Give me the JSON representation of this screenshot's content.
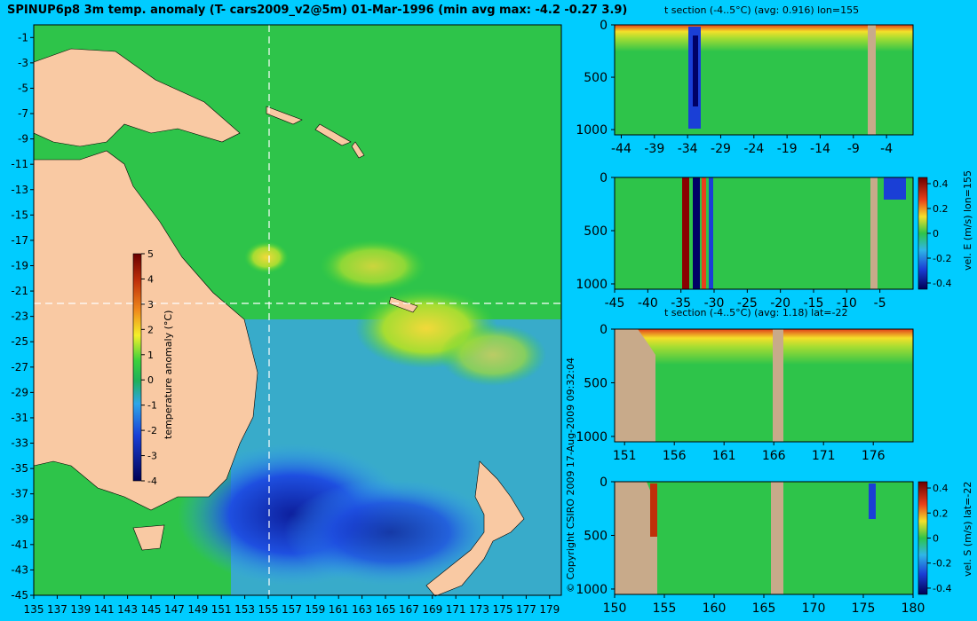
{
  "map": {
    "title": "SPINUP6p8 3m temp. anomaly (T- cars2009_v2@5m) 01-Mar-1996 (min avg max: -4.2 -0.27 3.9)",
    "colorbar_label": "temperature anomaly (°C)",
    "colorbar_ticks": [
      "5",
      "4",
      "3",
      "2",
      "1",
      "0",
      "-1",
      "-2",
      "-3",
      "-4"
    ],
    "lat_ticks": [
      "-1",
      "-3",
      "-5",
      "-7",
      "-9",
      "-11",
      "-13",
      "-15",
      "-17",
      "-19",
      "-21",
      "-23",
      "-25",
      "-27",
      "-29",
      "-31",
      "-33",
      "-35",
      "-37",
      "-39",
      "-41",
      "-43",
      "-45"
    ],
    "lon_ticks": [
      "135",
      "137",
      "139",
      "141",
      "143",
      "145",
      "147",
      "149",
      "151",
      "153",
      "155",
      "157",
      "159",
      "161",
      "163",
      "165",
      "167",
      "169",
      "171",
      "173",
      "175",
      "177",
      "179"
    ],
    "copyright": "© Copyright CSIRO 2009   17-Aug-2009 09:32:04"
  },
  "panels": {
    "p1": {
      "title": "t section (-4..5°C) (avg: 0.916) lon=155",
      "x_ticks": [
        "-44",
        "-39",
        "-34",
        "-29",
        "-24",
        "-19",
        "-14",
        "-9",
        "-4"
      ],
      "y_ticks": [
        "0",
        "500",
        "1000"
      ]
    },
    "p2": {
      "x_ticks": [
        "-45",
        "-40",
        "-35",
        "-30",
        "-25",
        "-20",
        "-15",
        "-10",
        "-5"
      ],
      "y_ticks": [
        "0",
        "500",
        "1000"
      ],
      "cb_label": "vel. E (m/s) lon=155",
      "cb_ticks": [
        "0.4",
        "0.2",
        "0",
        "-0.2",
        "-0.4"
      ]
    },
    "p3": {
      "title": "t section (-4..5°C) (avg: 1.18) lat=-22",
      "x_ticks": [
        "151",
        "156",
        "161",
        "166",
        "171",
        "176"
      ],
      "y_ticks": [
        "0",
        "500",
        "1000"
      ]
    },
    "p4": {
      "x_ticks": [
        "150",
        "155",
        "160",
        "165",
        "170",
        "175",
        "180"
      ],
      "y_ticks": [
        "0",
        "500",
        "1000"
      ],
      "cb_label": "vel. S (m/s) lat=-22",
      "cb_ticks": [
        "0.4",
        "0.2",
        "0",
        "-0.2",
        "-0.4"
      ]
    }
  },
  "chart_data": [
    {
      "type": "heatmap",
      "title": "SPINUP6p8 3m temp. anomaly (T- cars2009_v2@5m) 01-Mar-1996 (min avg max: -4.2 -0.27 3.9)",
      "x_range": [
        135,
        180
      ],
      "y_range": [
        -45,
        0
      ],
      "crosshair": {
        "lon": 155,
        "lat": -22
      },
      "color_range": [
        -4,
        5
      ],
      "stats": {
        "min": -4.2,
        "avg": -0.27,
        "max": 3.9
      }
    },
    {
      "type": "heatmap",
      "title": "t section (-4..5°C) (avg: 0.916) lon=155",
      "x_range": [
        -45,
        0
      ],
      "y_range": [
        0,
        1050
      ],
      "avg": 0.916
    },
    {
      "type": "heatmap",
      "title": "vel. E (m/s) lon=155",
      "x_range": [
        -45,
        0
      ],
      "y_range": [
        0,
        1050
      ],
      "color_range": [
        -0.4,
        0.4
      ]
    },
    {
      "type": "heatmap",
      "title": "t section (-4..5°C) (avg: 1.18) lat=-22",
      "x_range": [
        150,
        180
      ],
      "y_range": [
        0,
        1050
      ],
      "avg": 1.18
    },
    {
      "type": "heatmap",
      "title": "vel. S (m/s) lat=-22",
      "x_range": [
        150,
        180
      ],
      "y_range": [
        0,
        1050
      ],
      "color_range": [
        -0.4,
        0.4
      ]
    }
  ],
  "colors": {
    "background": "#00ccff",
    "land": "#f9c9a3",
    "section_land": "#c8aa8a",
    "ocean_base": "#22c55e"
  }
}
